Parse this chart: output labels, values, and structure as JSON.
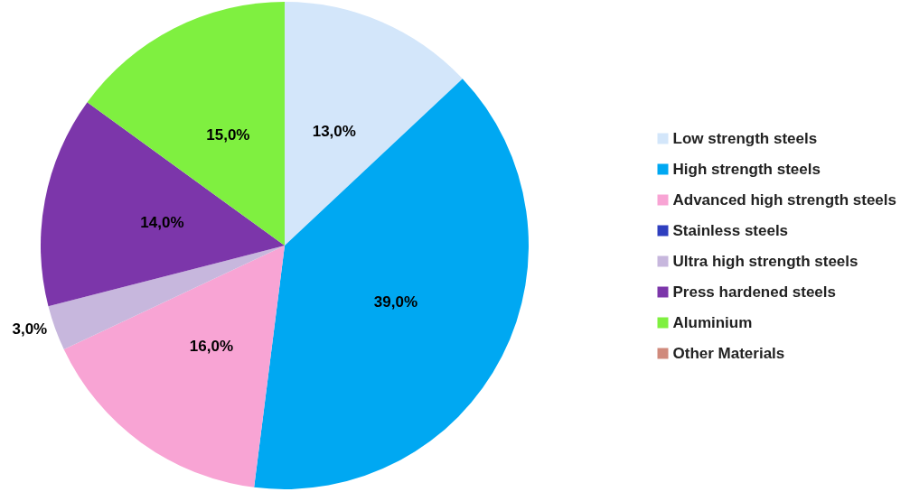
{
  "chart_data": {
    "type": "pie",
    "categories": [
      "Low strength steels",
      "High strength steels",
      "Advanced high strength steels",
      "Stainless steels",
      "Ultra high strength steels",
      "Press hardened steels",
      "Aluminium",
      "Other Materials"
    ],
    "values": [
      13,
      39,
      16,
      0,
      3,
      14,
      15,
      0
    ],
    "value_labels": [
      "13,0%",
      "39,0%",
      "16,0%",
      null,
      "3,0%",
      "14,0%",
      "15,0%",
      null
    ],
    "colors": [
      "#d3e6fa",
      "#00a8f2",
      "#f8a4d4",
      "#2f3fbf",
      "#c7b7dd",
      "#7c36aa",
      "#7ff040",
      "#d08a7c"
    ],
    "legend": "right"
  }
}
